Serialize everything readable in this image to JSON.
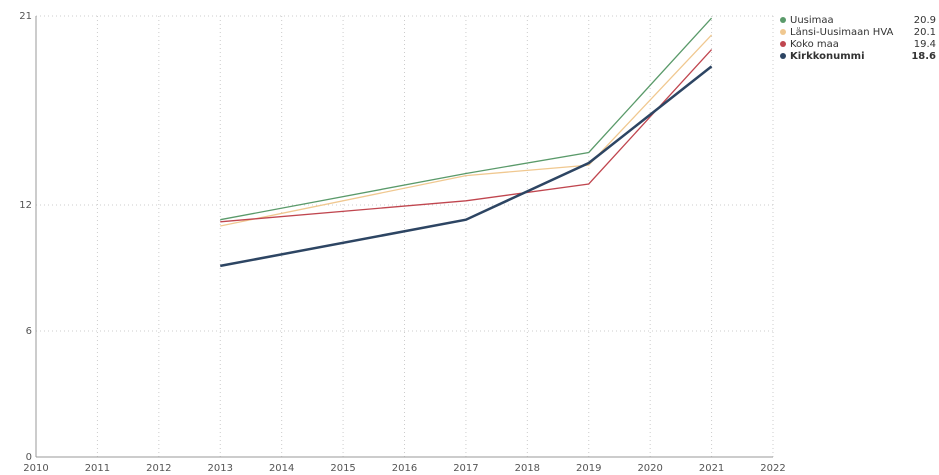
{
  "chart_data": {
    "type": "line",
    "x": [
      2013,
      2017,
      2019,
      2021
    ],
    "series": [
      {
        "name": "Uusimaa",
        "color": "#5a9a6a",
        "values": [
          11.3,
          13.5,
          14.5,
          20.9
        ]
      },
      {
        "name": "Länsi-Uusimaan HVA",
        "color": "#f0c890",
        "values": [
          11.0,
          13.4,
          13.9,
          20.1
        ]
      },
      {
        "name": "Koko maa",
        "color": "#c0464f",
        "values": [
          11.2,
          12.2,
          13.0,
          19.4
        ]
      },
      {
        "name": "Kirkkonummi",
        "color": "#2d4563",
        "values": [
          9.1,
          11.3,
          14.0,
          18.6
        ],
        "bold": true
      }
    ],
    "xlim": [
      2010,
      2022
    ],
    "xticks": [
      2010,
      2011,
      2012,
      2013,
      2014,
      2015,
      2016,
      2017,
      2018,
      2019,
      2020,
      2021,
      2022
    ],
    "ylim": [
      0,
      21
    ],
    "yticks": [
      0,
      6,
      12,
      21
    ],
    "grid": true
  }
}
